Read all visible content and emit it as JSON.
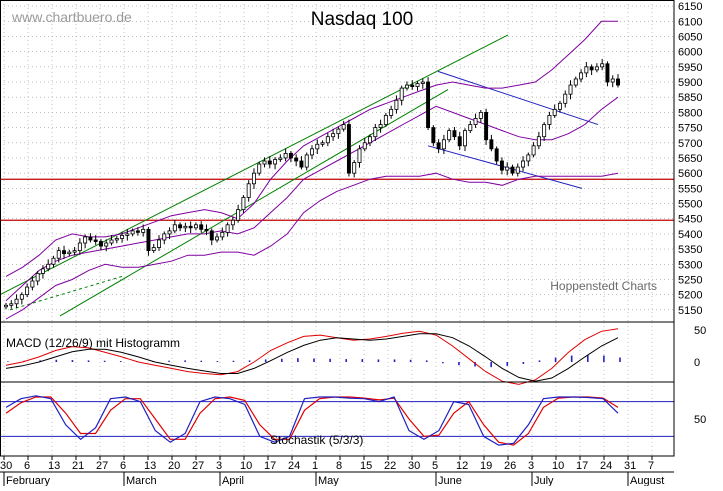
{
  "watermark": "www.chartbuero.de",
  "credit": "Hoppenstedt Charts",
  "colors": {
    "candle": "#000000",
    "bollinger": "#8000a0",
    "trend_channel": "#008000",
    "support_line": "#c00000",
    "flag_line": "#2020c0",
    "macd": "#000000",
    "macd_signal": "#e00000",
    "histogram": "#2020c0",
    "stoch_k": "#2020c0",
    "stoch_d": "#e00000",
    "stoch_level": "#2020c0",
    "grid": "#9a9a9a"
  },
  "chart_data": [
    {
      "type": "candlestick",
      "title": "Nasdaq 100",
      "yaxis_ticks": [
        5150,
        5200,
        5250,
        5300,
        5350,
        5400,
        5450,
        5500,
        5550,
        5600,
        5650,
        5700,
        5750,
        5800,
        5850,
        5900,
        5950,
        6000,
        6050,
        6100,
        6150
      ],
      "ylim": [
        5110,
        6170
      ],
      "grid": true,
      "x_day_ticks": [
        "30",
        "6",
        "13",
        "21",
        "27",
        "6",
        "13",
        "20",
        "27",
        "3",
        "10",
        "17",
        "24",
        "1",
        "8",
        "15",
        "22",
        "30",
        "5",
        "12",
        "19",
        "26",
        "3",
        "10",
        "17",
        "24",
        "31",
        "7"
      ],
      "x_month_labels": [
        "February",
        "March",
        "April",
        "May",
        "June",
        "July",
        "August"
      ],
      "horizontal_lines": [
        5445,
        5580
      ],
      "closes": [
        5165,
        5170,
        5185,
        5200,
        5225,
        5245,
        5270,
        5285,
        5300,
        5320,
        5345,
        5335,
        5340,
        5345,
        5370,
        5390,
        5380,
        5375,
        5360,
        5370,
        5380,
        5385,
        5395,
        5400,
        5410,
        5405,
        5415,
        5345,
        5355,
        5380,
        5400,
        5410,
        5430,
        5420,
        5425,
        5420,
        5430,
        5415,
        5410,
        5380,
        5390,
        5405,
        5430,
        5445,
        5480,
        5520,
        5565,
        5600,
        5630,
        5640,
        5630,
        5645,
        5650,
        5665,
        5650,
        5640,
        5620,
        5660,
        5680,
        5695,
        5700,
        5720,
        5730,
        5745,
        5760,
        5600,
        5635,
        5680,
        5700,
        5720,
        5750,
        5760,
        5790,
        5810,
        5840,
        5880,
        5890,
        5885,
        5895,
        5900,
        5750,
        5700,
        5680,
        5710,
        5740,
        5720,
        5690,
        5740,
        5760,
        5780,
        5800,
        5710,
        5680,
        5640,
        5610,
        5620,
        5600,
        5620,
        5640,
        5660,
        5690,
        5720,
        5760,
        5790,
        5810,
        5830,
        5860,
        5890,
        5910,
        5930,
        5950,
        5940,
        5950,
        5960,
        5900,
        5910,
        5890
      ],
      "bollinger_upper": [
        5260,
        5290,
        5330,
        5380,
        5400,
        5390,
        5390,
        5400,
        5420,
        5440,
        5460,
        5470,
        5480,
        5470,
        5450,
        5500,
        5580,
        5640,
        5690,
        5720,
        5750,
        5780,
        5810,
        5830,
        5850,
        5870,
        5890,
        5900,
        5890,
        5880,
        5880,
        5890,
        5900,
        5940,
        5990,
        6040,
        6100,
        6100
      ],
      "bollinger_mid": [
        5180,
        5230,
        5280,
        5310,
        5330,
        5340,
        5350,
        5360,
        5370,
        5380,
        5390,
        5400,
        5400,
        5410,
        5400,
        5420,
        5470,
        5520,
        5580,
        5610,
        5640,
        5670,
        5700,
        5730,
        5760,
        5790,
        5820,
        5800,
        5780,
        5760,
        5740,
        5720,
        5710,
        5710,
        5730,
        5760,
        5810,
        5850
      ],
      "bollinger_lower": [
        5120,
        5150,
        5190,
        5230,
        5250,
        5280,
        5300,
        5290,
        5290,
        5300,
        5310,
        5330,
        5330,
        5340,
        5340,
        5330,
        5360,
        5400,
        5470,
        5510,
        5540,
        5560,
        5580,
        5590,
        5590,
        5590,
        5600,
        5580,
        5570,
        5570,
        5560,
        5580,
        5590,
        5590,
        5590,
        5590,
        5590,
        5600
      ],
      "trend_channel_upper": {
        "start": 5200,
        "end": 6055
      },
      "trend_channel_lower": {
        "start": 5130,
        "end": 5875
      },
      "flag_upper": {
        "start": 5935,
        "end": 5760
      },
      "flag_lower": {
        "start": 5690,
        "end": 5550
      }
    },
    {
      "type": "line",
      "title": "MACD (12/26/9) mit Histogramm",
      "yaxis_ticks": [
        0,
        50
      ],
      "series": [
        {
          "values": [
            -5,
            0,
            8,
            18,
            24,
            22,
            15,
            8,
            0,
            -5,
            -10,
            -15,
            -18,
            -20,
            -15,
            0,
            18,
            30,
            40,
            42,
            38,
            34,
            36,
            40,
            45,
            48,
            42,
            25,
            5,
            -15,
            -30,
            -35,
            -28,
            -10,
            15,
            35,
            48,
            52
          ]
        },
        {
          "values": [
            -10,
            -6,
            0,
            8,
            16,
            20,
            20,
            15,
            8,
            0,
            -5,
            -10,
            -14,
            -18,
            -18,
            -10,
            2,
            15,
            26,
            34,
            38,
            36,
            34,
            36,
            40,
            44,
            44,
            38,
            25,
            8,
            -10,
            -24,
            -30,
            -25,
            -10,
            8,
            25,
            38
          ]
        }
      ],
      "histogram": [
        2,
        4,
        5,
        7,
        6,
        5,
        4,
        3,
        3,
        3,
        4,
        5,
        4,
        3,
        4,
        5,
        8,
        10,
        12,
        11,
        10,
        9,
        9,
        8,
        8,
        7,
        5,
        -4,
        -10,
        -14,
        -16,
        -12,
        -6,
        5,
        14,
        20,
        22,
        20,
        14
      ]
    },
    {
      "type": "line",
      "title": "Stochastik (5/3/3)",
      "yaxis_ticks": [
        50
      ],
      "levels": [
        20,
        80
      ],
      "series": [
        {
          "values": [
            70,
            85,
            90,
            85,
            40,
            15,
            35,
            85,
            88,
            80,
            30,
            10,
            25,
            80,
            88,
            85,
            75,
            20,
            10,
            20,
            85,
            88,
            88,
            86,
            85,
            80,
            88,
            30,
            15,
            30,
            80,
            75,
            20,
            5,
            8,
            40,
            85,
            88,
            88,
            87,
            85,
            60
          ]
        },
        {
          "values": [
            60,
            78,
            88,
            88,
            60,
            25,
            25,
            65,
            85,
            85,
            50,
            15,
            15,
            60,
            85,
            88,
            82,
            40,
            15,
            15,
            65,
            85,
            88,
            88,
            86,
            83,
            86,
            50,
            20,
            22,
            60,
            80,
            40,
            10,
            5,
            25,
            70,
            86,
            88,
            88,
            86,
            70
          ]
        }
      ]
    }
  ]
}
